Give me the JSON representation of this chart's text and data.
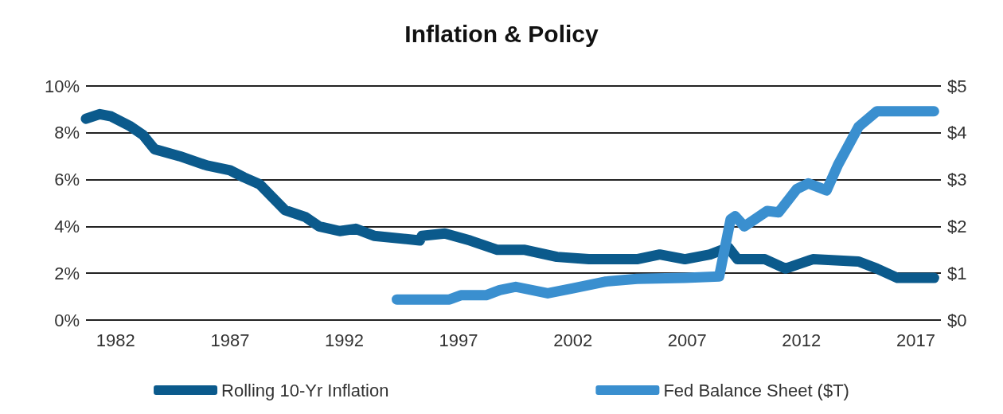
{
  "chart_data": {
    "type": "line",
    "title": "Inflation & Policy",
    "x": [
      1980.7,
      1981.3,
      1981.8,
      1982.6,
      1983.2,
      1983.7,
      1984.8,
      1986.0,
      1987.0,
      1987.6,
      1988.3,
      1989.4,
      1990.3,
      1990.9,
      1991.8,
      1992.5,
      1993.3,
      1995.3,
      1995.4,
      1996.4,
      1997.5,
      1998.7,
      1999.9,
      2001.3,
      2002.7,
      2004.8,
      2005.8,
      2006.9,
      2008.0,
      2008.8,
      2009.2,
      2010.4,
      2011.3,
      2012.5,
      2014.5,
      2015.3,
      2016.2,
      2017.8
    ],
    "series": [
      {
        "name": "Rolling 10-Yr Inflation",
        "color": "#0b5a8c",
        "values": [
          8.6,
          8.8,
          8.7,
          8.3,
          7.9,
          7.3,
          7.0,
          6.6,
          6.4,
          6.1,
          5.8,
          4.7,
          4.4,
          4.0,
          3.8,
          3.9,
          3.6,
          3.4,
          3.6,
          3.7,
          3.4,
          3.0,
          3.0,
          2.7,
          2.6,
          2.6,
          2.8,
          2.6,
          2.8,
          3.1,
          2.6,
          2.6,
          2.2,
          2.6,
          2.5,
          2.2,
          1.8,
          1.8
        ]
      },
      {
        "name": "Fed Balance Sheet ($T)",
        "color": "#3a8fcf",
        "axis": "y2",
        "x": [
          1994.3,
          1996.6,
          1997.1,
          1998.2,
          1998.8,
          1999.5,
          2000.9,
          2002.0,
          2003.4,
          2004.8,
          2006.9,
          2008.4,
          2008.9,
          2009.1,
          2009.5,
          2010.5,
          2011.0,
          2011.8,
          2012.3,
          2013.1,
          2013.6,
          2014.5,
          2015.3,
          2017.8
        ],
        "values": [
          0.44,
          0.44,
          0.53,
          0.53,
          0.64,
          0.71,
          0.57,
          0.68,
          0.82,
          0.88,
          0.9,
          0.93,
          2.15,
          2.22,
          2.0,
          2.33,
          2.3,
          2.8,
          2.92,
          2.77,
          3.32,
          4.13,
          4.46,
          4.46
        ]
      }
    ],
    "xlim": [
      1980.7,
      2018.1
    ],
    "xticks": [
      1982,
      1987,
      1992,
      1997,
      2002,
      2007,
      2012,
      2017
    ],
    "ylim": [
      0,
      10
    ],
    "yticks": [
      {
        "value": 0,
        "label": "0%"
      },
      {
        "value": 2,
        "label": "2%"
      },
      {
        "value": 4,
        "label": "4%"
      },
      {
        "value": 6,
        "label": "6%"
      },
      {
        "value": 8,
        "label": "8%"
      },
      {
        "value": 10,
        "label": "10%"
      }
    ],
    "y2lim": [
      0,
      5
    ],
    "y2ticks": [
      {
        "value": 0,
        "label": "$0"
      },
      {
        "value": 1,
        "label": "$1"
      },
      {
        "value": 2,
        "label": "$2"
      },
      {
        "value": 3,
        "label": "$3"
      },
      {
        "value": 4,
        "label": "$4"
      },
      {
        "value": 5,
        "label": "$5"
      }
    ],
    "grid": "y",
    "legend": "bottom",
    "marker": "none",
    "line_style": "solid"
  }
}
